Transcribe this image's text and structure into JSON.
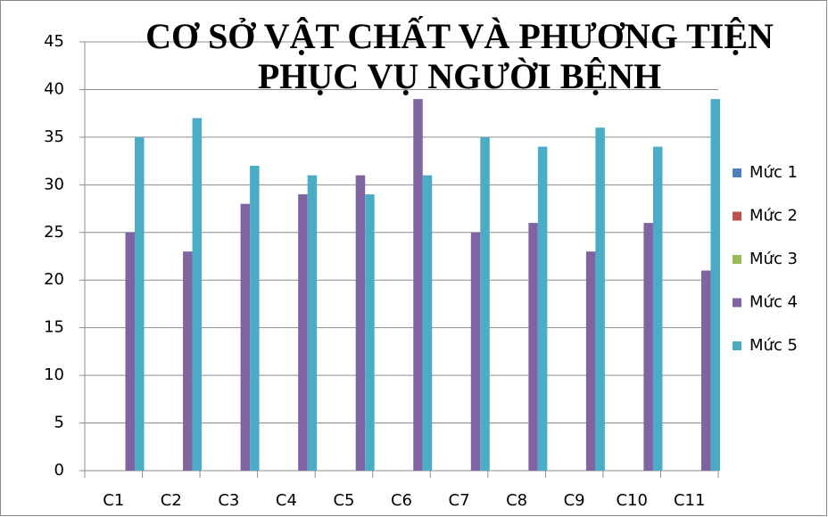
{
  "chart_data": {
    "type": "bar",
    "title": [
      "CƠ SỞ VẬT CHẤT VÀ PHƯƠNG TIỆN",
      "PHỤC VỤ NGƯỜI BỆNH"
    ],
    "categories": [
      "C1",
      "C2",
      "C3",
      "C4",
      "C5",
      "C6",
      "C7",
      "C8",
      "C9",
      "C10",
      "C11"
    ],
    "series": [
      {
        "name": "Mức 1",
        "color": "#4f81bd",
        "values": [
          0,
          0,
          0,
          0,
          0,
          0,
          0,
          0,
          0,
          0,
          0
        ]
      },
      {
        "name": "Mức 2",
        "color": "#c0504d",
        "values": [
          0,
          0,
          0,
          0,
          0,
          0,
          0,
          0,
          0,
          0,
          0
        ]
      },
      {
        "name": "Mức 3",
        "color": "#9bbb59",
        "values": [
          0,
          0,
          0,
          0,
          0,
          0,
          0,
          0,
          0,
          0,
          0
        ]
      },
      {
        "name": "Mức 4",
        "color": "#8064a2",
        "values": [
          25,
          23,
          28,
          29,
          31,
          39,
          25,
          26,
          23,
          26,
          21
        ]
      },
      {
        "name": "Mức 5",
        "color": "#4bacc6",
        "values": [
          35,
          37,
          32,
          31,
          29,
          31,
          35,
          34,
          36,
          34,
          39
        ]
      }
    ],
    "ylim": [
      0,
      45
    ],
    "yticks": [
      0,
      5,
      10,
      15,
      20,
      25,
      30,
      35,
      40,
      45
    ],
    "grid": true,
    "legend": "right"
  }
}
